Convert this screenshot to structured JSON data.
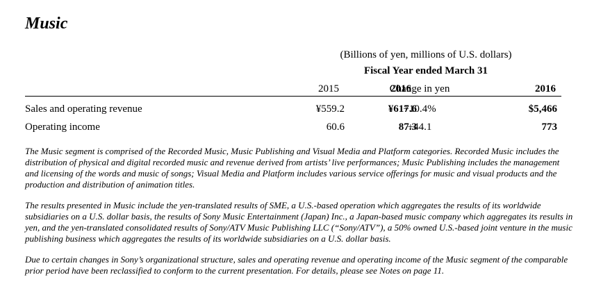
{
  "section": {
    "title": "Music"
  },
  "table": {
    "units_caption": "(Billions of yen, millions of U.S. dollars)",
    "period_caption": "Fiscal Year ended March 31",
    "headers": [
      "2015",
      "2016",
      "Change in yen",
      "2016"
    ],
    "rows": [
      {
        "label": "Sales and operating revenue",
        "fy2015": "¥559.2",
        "fy2016": "¥617.6",
        "change": "+10.4%",
        "usd2016": "$5,466"
      },
      {
        "label": "Operating income",
        "fy2015": "60.6",
        "fy2016": "87.3",
        "change": "+44.1",
        "usd2016": "773"
      }
    ]
  },
  "notes": [
    "The Music segment is comprised of the Recorded Music, Music Publishing and Visual Media and Platform categories.   Recorded Music includes the distribution of physical and digital recorded music and revenue derived from artists’ live performances; Music Publishing includes the management and licensing of the words and music of songs; Visual Media and Platform includes various service offerings for music and visual products and the production and distribution of animation titles.",
    "The results presented in Music include the yen-translated results of SME, a U.S.-based operation which aggregates the results of its worldwide subsidiaries on a U.S. dollar basis, the results of Sony Music Entertainment (Japan) Inc., a Japan-based music company which aggregates its results in yen, and the yen-translated consolidated results of Sony/ATV Music Publishing LLC (“Sony/ATV”), a 50% owned U.S.-based joint venture in the music publishing business which aggregates the results of its worldwide subsidiaries on a U.S. dollar basis.",
    "Due to certain changes in Sony’s organizational structure, sales and operating revenue and operating income of the Music segment of the comparable prior period have been reclassified to conform to the current presentation.   For details, please see Notes on page 11."
  ]
}
